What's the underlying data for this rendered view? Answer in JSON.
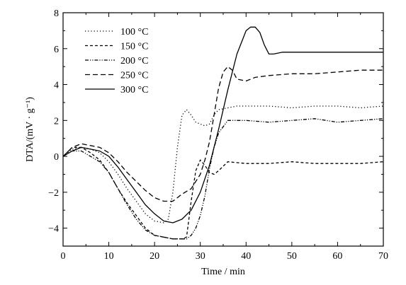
{
  "chart_data": {
    "type": "line",
    "title": "",
    "xlabel": "Time / min",
    "ylabel": "DTA/(mV · g⁻¹)",
    "xlim": [
      0,
      70
    ],
    "ylim": [
      -5,
      8
    ],
    "x_ticks": [
      "0",
      "10",
      "20",
      "30",
      "40",
      "50",
      "60",
      "70"
    ],
    "y_ticks": [
      "−4",
      "−2",
      "0",
      "2",
      "4",
      "6",
      "8"
    ],
    "grid": false,
    "legend_position": "top-left",
    "series": [
      {
        "name": "100 °C",
        "style": "dotted",
        "x": [
          0,
          2,
          4,
          6,
          8,
          10,
          12,
          14,
          16,
          18,
          20,
          22,
          23,
          24,
          25,
          26,
          27,
          28,
          29,
          30,
          31,
          32,
          33,
          34,
          36,
          38,
          40,
          45,
          50,
          55,
          60,
          65,
          70
        ],
        "y": [
          0.0,
          0.4,
          0.5,
          0.4,
          0.2,
          -0.3,
          -1.0,
          -1.8,
          -2.5,
          -3.2,
          -3.6,
          -3.7,
          -3.5,
          -2.0,
          0.5,
          2.3,
          2.6,
          2.3,
          1.9,
          1.8,
          1.7,
          1.8,
          2.3,
          2.6,
          2.7,
          2.8,
          2.8,
          2.8,
          2.7,
          2.8,
          2.8,
          2.7,
          2.8
        ]
      },
      {
        "name": "150 °C",
        "style": "dashed",
        "x": [
          0,
          2,
          4,
          6,
          8,
          10,
          12,
          14,
          16,
          18,
          20,
          22,
          24,
          26,
          27,
          28,
          29,
          30,
          31,
          32,
          33,
          34,
          36,
          40,
          45,
          50,
          55,
          60,
          65,
          70
        ],
        "y": [
          0.0,
          0.5,
          0.5,
          0.2,
          -0.2,
          -0.9,
          -1.8,
          -2.6,
          -3.3,
          -4.0,
          -4.4,
          -4.5,
          -4.6,
          -4.6,
          -4.5,
          -2.5,
          -0.8,
          -0.2,
          -0.5,
          -0.9,
          -1.0,
          -0.8,
          -0.3,
          -0.4,
          -0.4,
          -0.3,
          -0.4,
          -0.4,
          -0.4,
          -0.3
        ]
      },
      {
        "name": "200 °C",
        "style": "dash-dot-dot",
        "x": [
          0,
          2,
          4,
          6,
          8,
          10,
          12,
          14,
          16,
          18,
          20,
          22,
          24,
          26,
          27,
          28,
          29,
          30,
          31,
          32,
          33,
          34,
          36,
          40,
          45,
          50,
          55,
          60,
          65,
          70
        ],
        "y": [
          0.0,
          0.3,
          0.3,
          0.0,
          -0.3,
          -0.9,
          -1.8,
          -2.7,
          -3.5,
          -4.1,
          -4.4,
          -4.5,
          -4.6,
          -4.6,
          -4.6,
          -4.4,
          -4.0,
          -3.3,
          -2.2,
          -0.7,
          0.5,
          1.3,
          2.0,
          2.0,
          1.9,
          2.0,
          2.1,
          1.9,
          2.0,
          2.1
        ]
      },
      {
        "name": "250 °C",
        "style": "dashed-long",
        "x": [
          0,
          2,
          4,
          6,
          8,
          10,
          12,
          14,
          16,
          18,
          20,
          22,
          24,
          25,
          26,
          28,
          30,
          31,
          32,
          33,
          34,
          35,
          36,
          37,
          38,
          40,
          42,
          45,
          50,
          55,
          60,
          65,
          70
        ],
        "y": [
          0.0,
          0.5,
          0.7,
          0.6,
          0.5,
          0.2,
          -0.3,
          -0.9,
          -1.4,
          -1.9,
          -2.3,
          -2.5,
          -2.5,
          -2.3,
          -2.1,
          -1.8,
          -1.0,
          -0.2,
          0.8,
          2.3,
          3.8,
          4.7,
          5.0,
          4.8,
          4.3,
          4.2,
          4.4,
          4.5,
          4.6,
          4.6,
          4.7,
          4.8,
          4.8
        ]
      },
      {
        "name": "300 °C",
        "style": "solid",
        "x": [
          0,
          2,
          4,
          6,
          8,
          10,
          12,
          14,
          16,
          18,
          20,
          22,
          24,
          26,
          28,
          30,
          32,
          34,
          36,
          38,
          40,
          41,
          42,
          43,
          44,
          45,
          46,
          48,
          50,
          55,
          60,
          65,
          70
        ],
        "y": [
          0.0,
          0.3,
          0.5,
          0.4,
          0.3,
          0.0,
          -0.6,
          -1.3,
          -2.0,
          -2.7,
          -3.2,
          -3.6,
          -3.7,
          -3.5,
          -3.0,
          -2.0,
          -0.5,
          1.5,
          3.7,
          5.7,
          7.0,
          7.2,
          7.2,
          6.9,
          6.2,
          5.7,
          5.7,
          5.8,
          5.8,
          5.8,
          5.8,
          5.8,
          5.8
        ]
      }
    ]
  }
}
